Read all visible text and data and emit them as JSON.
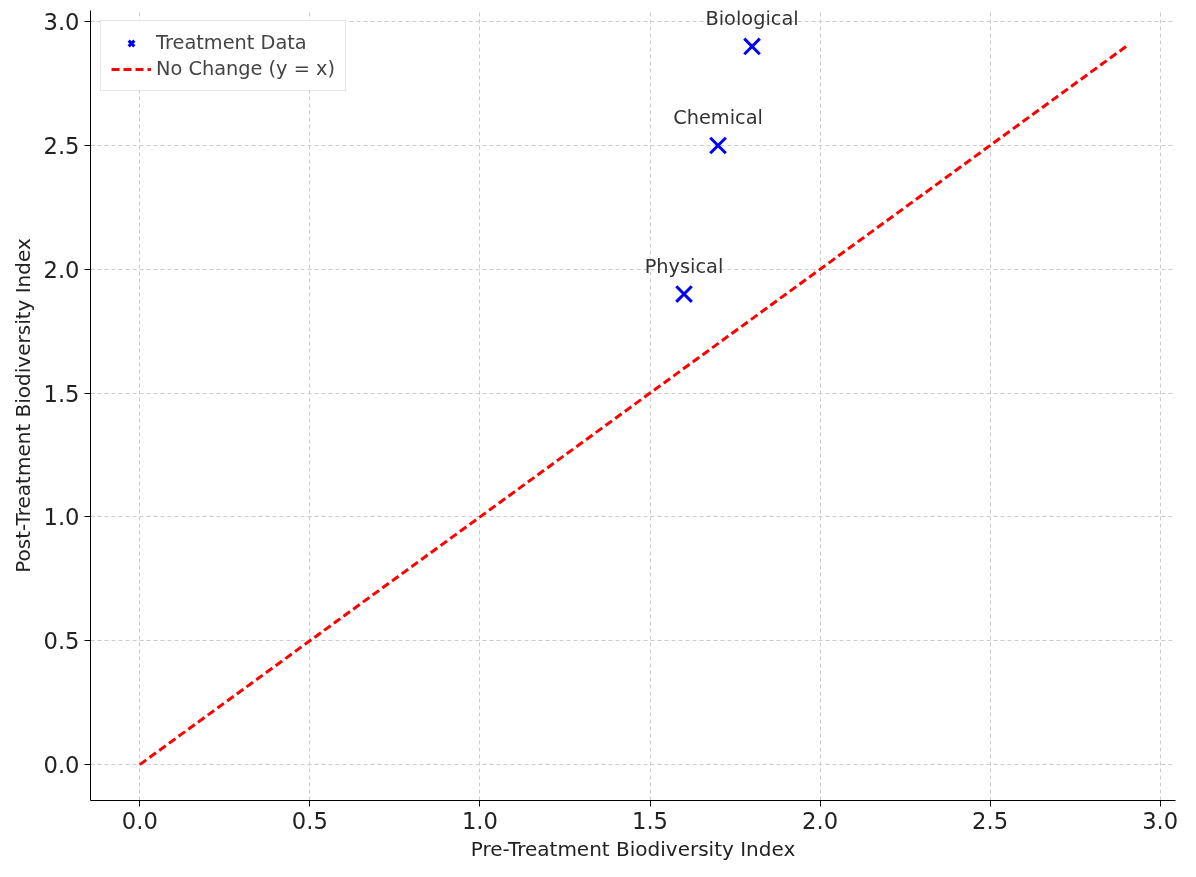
{
  "chart_data": {
    "type": "scatter",
    "xlabel": "Pre-Treatment Biodiversity Index",
    "ylabel": "Post-Treatment Biodiversity Index",
    "xlim": [
      -0.145,
      3.045
    ],
    "ylim": [
      -0.145,
      3.045
    ],
    "xticks": [
      {
        "value": 0,
        "label": "0.0"
      },
      {
        "value": 0.5,
        "label": "0.5"
      },
      {
        "value": 1,
        "label": "1.0"
      },
      {
        "value": 1.5,
        "label": "1.5"
      },
      {
        "value": 2,
        "label": "2.0"
      },
      {
        "value": 2.5,
        "label": "2.5"
      },
      {
        "value": 3,
        "label": "3.0"
      }
    ],
    "yticks": [
      {
        "value": 0,
        "label": "0.0"
      },
      {
        "value": 0.5,
        "label": "0.5"
      },
      {
        "value": 1,
        "label": "1.0"
      },
      {
        "value": 1.5,
        "label": "1.5"
      },
      {
        "value": 2,
        "label": "2.0"
      },
      {
        "value": 2.5,
        "label": "2.5"
      },
      {
        "value": 3,
        "label": "3.0"
      }
    ],
    "grid": true,
    "legend": "top left",
    "series": [
      {
        "name": "Treatment Data",
        "color": "#0000ff",
        "marker": "cross",
        "x": [
          1.6,
          1.7,
          1.8
        ],
        "values": [
          1.9,
          2.5,
          2.9
        ]
      },
      {
        "name": "No Change (y = x)",
        "type": "line",
        "color": "#ff0000",
        "line_style": "dashed",
        "x": [
          0,
          2.9
        ],
        "values": [
          0,
          2.9
        ]
      }
    ],
    "annotations": [
      {
        "text": "Physical",
        "x": 1.6,
        "y": 1.9
      },
      {
        "text": "Chemical",
        "x": 1.7,
        "y": 2.5
      },
      {
        "text": "Biological",
        "x": 1.8,
        "y": 2.9
      }
    ]
  }
}
